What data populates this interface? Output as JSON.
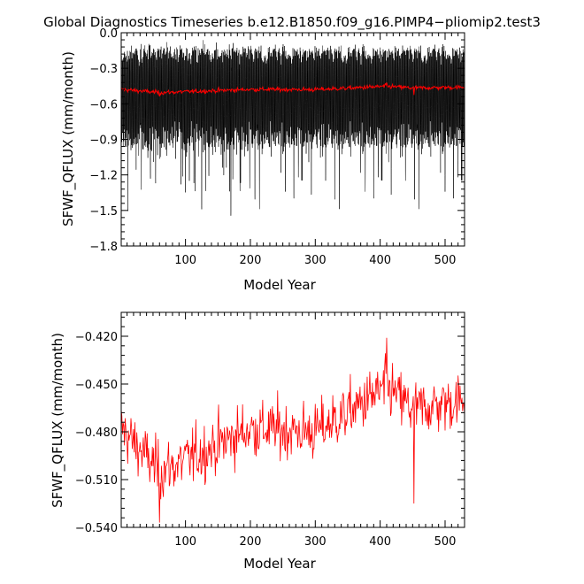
{
  "title": "Global Diagnostics Timeseries b.e12.B1850.f09_g16.PIMP4−pliomip2.test3",
  "colors": {
    "monthly": "#000000",
    "annual": "#ff0000",
    "axes": "#000000",
    "background": "#ffffff"
  },
  "chart_data": [
    {
      "type": "line",
      "panel": "top",
      "xlabel": "Model Year",
      "ylabel": "SFWF_QFLUX (mm/month)",
      "xlim": [
        1,
        530
      ],
      "ylim": [
        -1.8,
        0.0
      ],
      "x_ticks": [
        100,
        200,
        300,
        400,
        500
      ],
      "y_ticks": [
        0.0,
        -0.3,
        -0.6,
        -0.9,
        -1.2,
        -1.5,
        -1.8
      ],
      "y_tick_labels": [
        "0.0",
        "−0.3",
        "−0.6",
        "−0.9",
        "−1.2",
        "−1.5",
        "−1.8"
      ],
      "grid": false,
      "legend": "none",
      "series": [
        {
          "color": "#000000",
          "description": "monthly values oscillating seasonally",
          "typical_max": -0.18,
          "typical_min": -0.9,
          "extreme_max": -0.12,
          "extreme_min": -1.56
        },
        {
          "color": "#ff0000",
          "description": "annual mean",
          "same_as_panel": "bottom"
        }
      ]
    },
    {
      "type": "line",
      "panel": "bottom",
      "xlabel": "Model Year",
      "ylabel": "SFWF_QFLUX (mm/month)",
      "xlim": [
        1,
        530
      ],
      "ylim": [
        -0.54,
        -0.405
      ],
      "x_ticks": [
        100,
        200,
        300,
        400,
        500
      ],
      "y_ticks": [
        -0.42,
        -0.45,
        -0.48,
        -0.51,
        -0.54
      ],
      "y_tick_labels": [
        "−0.420",
        "−0.450",
        "−0.480",
        "−0.510",
        "−0.540"
      ],
      "grid": false,
      "legend": "none",
      "series": [
        {
          "color": "#ff0000",
          "description": "annual mean",
          "x_start": 1,
          "x_end": 530,
          "trend_x": [
            1,
            60,
            100,
            200,
            300,
            350,
            410,
            450,
            530
          ],
          "trend_y": [
            -0.478,
            -0.505,
            -0.498,
            -0.478,
            -0.48,
            -0.468,
            -0.452,
            -0.466,
            -0.46
          ],
          "max_value": {
            "x": 410,
            "y": -0.421
          },
          "min_value": {
            "x": 60,
            "y": -0.537
          },
          "min_secondary": {
            "x": 452,
            "y": -0.525
          }
        }
      ]
    }
  ]
}
